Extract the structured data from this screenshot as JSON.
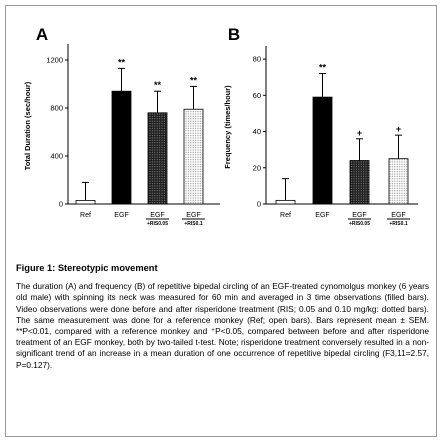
{
  "figure": {
    "title": "Figure 1: Stereotypic movement",
    "caption": "The duration (A) and frequency (B) of repetitive bipedal circling of an EGF-treated cynomolgus monkey (6 years old male) with spinning its neck was measured for 60 min and averaged in 3 time observations (filled bars). Video observations were done before and after risperidone treatment (RIS; 0.05 and 0.10 mg/kg: dotted bars). The same measurement was done for a reference monkey (Ref; open bars). Bars represent mean ± SEM. **P<0.01, compared with a reference monkey and ⁺P<0.05, compared between before and after risperidone treatment of an EGF monkey, both by two-tailed t-test. Note; risperidone treatment conversely resulted in a non-significant trend of an increase in a mean duration of one occurrence of repetitive bipedal circling (F3,11=2.57, P=0.127)."
  },
  "chart_data": [
    {
      "panel": "A",
      "type": "bar",
      "categories": [
        "Ref",
        "EGF",
        "EGF",
        "EGF"
      ],
      "subcategories": [
        "",
        "",
        "+RIS0.05",
        "+RIS0.1"
      ],
      "values": [
        30,
        940,
        760,
        790
      ],
      "errors": [
        150,
        190,
        180,
        190
      ],
      "fills": [
        "open",
        "filled",
        "filled-dotted",
        "dotted"
      ],
      "annotations": [
        "",
        "**",
        "**",
        "**"
      ],
      "ylabel": "Total Duration (sec/hour)",
      "ylim": [
        0,
        1300
      ],
      "yticks": [
        0,
        400,
        800,
        1200
      ]
    },
    {
      "panel": "B",
      "type": "bar",
      "categories": [
        "Ref",
        "EGF",
        "EGF",
        "EGF"
      ],
      "subcategories": [
        "",
        "",
        "+RIS0.05",
        "+RIS0.1"
      ],
      "values": [
        2,
        59,
        24,
        25
      ],
      "errors": [
        12,
        13,
        12,
        13
      ],
      "fills": [
        "open",
        "filled",
        "filled-dotted",
        "dotted"
      ],
      "annotations": [
        "",
        "**",
        "+",
        "+"
      ],
      "ylabel": "Frequency (times/hour)",
      "ylim": [
        0,
        85
      ],
      "yticks": [
        0,
        20,
        40,
        60,
        80
      ]
    }
  ]
}
